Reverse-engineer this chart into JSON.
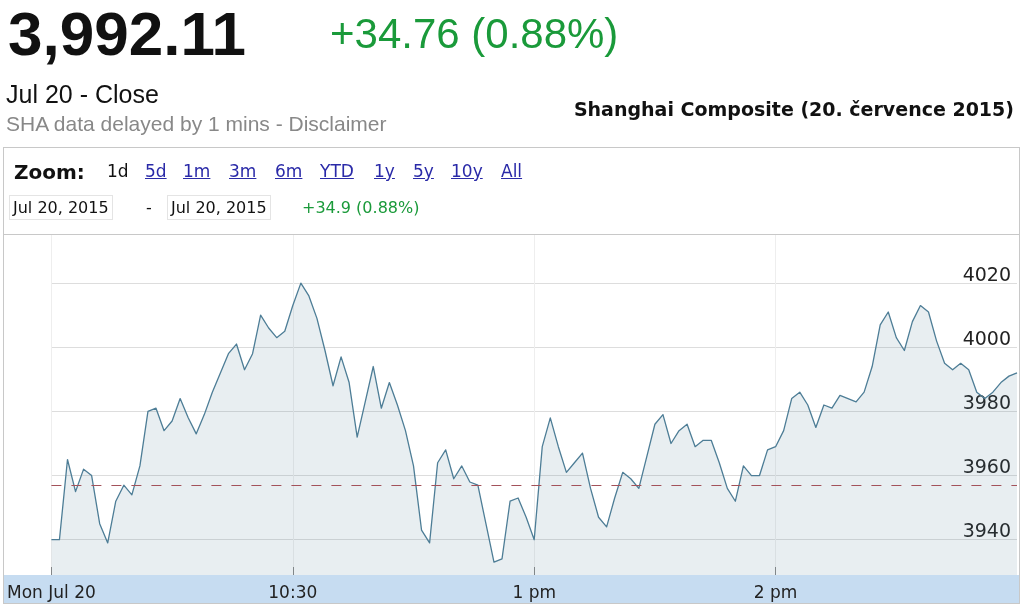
{
  "chart_data": {
    "type": "area",
    "title": "Shanghai Composite (20. července 2015)",
    "annotations": [
      "3,992.11",
      "+34.76 (0.88%)",
      "Jul 20 - Close",
      "SHA data delayed by 1 mins - Disclaimer",
      "Zoom:",
      "1d",
      "5d",
      "1m",
      "3m",
      "6m",
      "YTD",
      "1y",
      "5y",
      "10y",
      "All",
      "Jul 20, 2015",
      "-",
      "Jul 20, 2015",
      "+34.9 (0.88%)"
    ],
    "categories": [
      "Mon Jul 20",
      null,
      null,
      null,
      null,
      null,
      null,
      null,
      null,
      null,
      null,
      null,
      null,
      null,
      null,
      null,
      null,
      null,
      null,
      null,
      null,
      null,
      null,
      null,
      null,
      null,
      null,
      null,
      null,
      null,
      "10:30",
      null,
      null,
      null,
      null,
      null,
      null,
      null,
      null,
      null,
      null,
      null,
      null,
      null,
      null,
      null,
      null,
      null,
      null,
      null,
      null,
      null,
      null,
      null,
      null,
      null,
      null,
      null,
      null,
      null,
      "1 pm",
      null,
      null,
      null,
      null,
      null,
      null,
      null,
      null,
      null,
      null,
      null,
      null,
      null,
      null,
      null,
      null,
      null,
      null,
      null,
      null,
      null,
      null,
      null,
      null,
      null,
      null,
      null,
      null,
      null,
      "2 pm",
      null,
      null,
      null,
      null,
      null,
      null,
      null,
      null,
      null,
      null,
      null,
      null,
      null,
      null,
      null,
      null,
      null,
      null,
      null,
      null,
      null,
      null,
      null,
      null,
      null,
      null,
      null,
      null,
      null,
      null
    ],
    "ylim": [
      3929,
      4035
    ],
    "yticks": [
      3940,
      3960,
      3980,
      4000,
      4020
    ],
    "grid": true,
    "marker": "none",
    "line_style": "solid",
    "ref_lines": [
      {
        "axis": "y",
        "value": 3957,
        "color": "#a3525a",
        "line_style": "dashed"
      }
    ],
    "series": [
      {
        "color": "#4d7d96",
        "values": [
          3940,
          3940,
          3965,
          3955,
          3962,
          3960,
          3945,
          3939,
          3952,
          3957,
          3954,
          3963,
          3980,
          3981,
          3974,
          3977,
          3984,
          3978,
          3973,
          3979,
          3986,
          3992,
          3998,
          4001,
          3993,
          3998,
          4010,
          4006,
          4003,
          4005,
          4013,
          4020,
          4016,
          4009,
          3999,
          3988,
          3997,
          3989,
          3972,
          3983,
          3994,
          3981,
          3989,
          3982,
          3974,
          3963,
          3943,
          3939,
          3964,
          3968,
          3959,
          3963,
          3958,
          3957,
          3945,
          3933,
          3934,
          3952,
          3953,
          3947,
          3940,
          3969,
          3978,
          3969,
          3961,
          3964,
          3967,
          3956,
          3947,
          3944,
          3953,
          3961,
          3959,
          3956,
          3966,
          3976,
          3979,
          3970,
          3974,
          3976,
          3969,
          3971,
          3971,
          3964,
          3956,
          3952,
          3963,
          3960,
          3960,
          3968,
          3969,
          3974,
          3984,
          3986,
          3982,
          3975,
          3982,
          3981,
          3985,
          3984,
          3983,
          3986,
          3994,
          4007,
          4011,
          4003,
          3999,
          4008,
          4013,
          4011,
          4002,
          3995,
          3993,
          3995,
          3993,
          3986,
          3984,
          3986,
          3989,
          3991,
          3992
        ]
      }
    ]
  }
}
